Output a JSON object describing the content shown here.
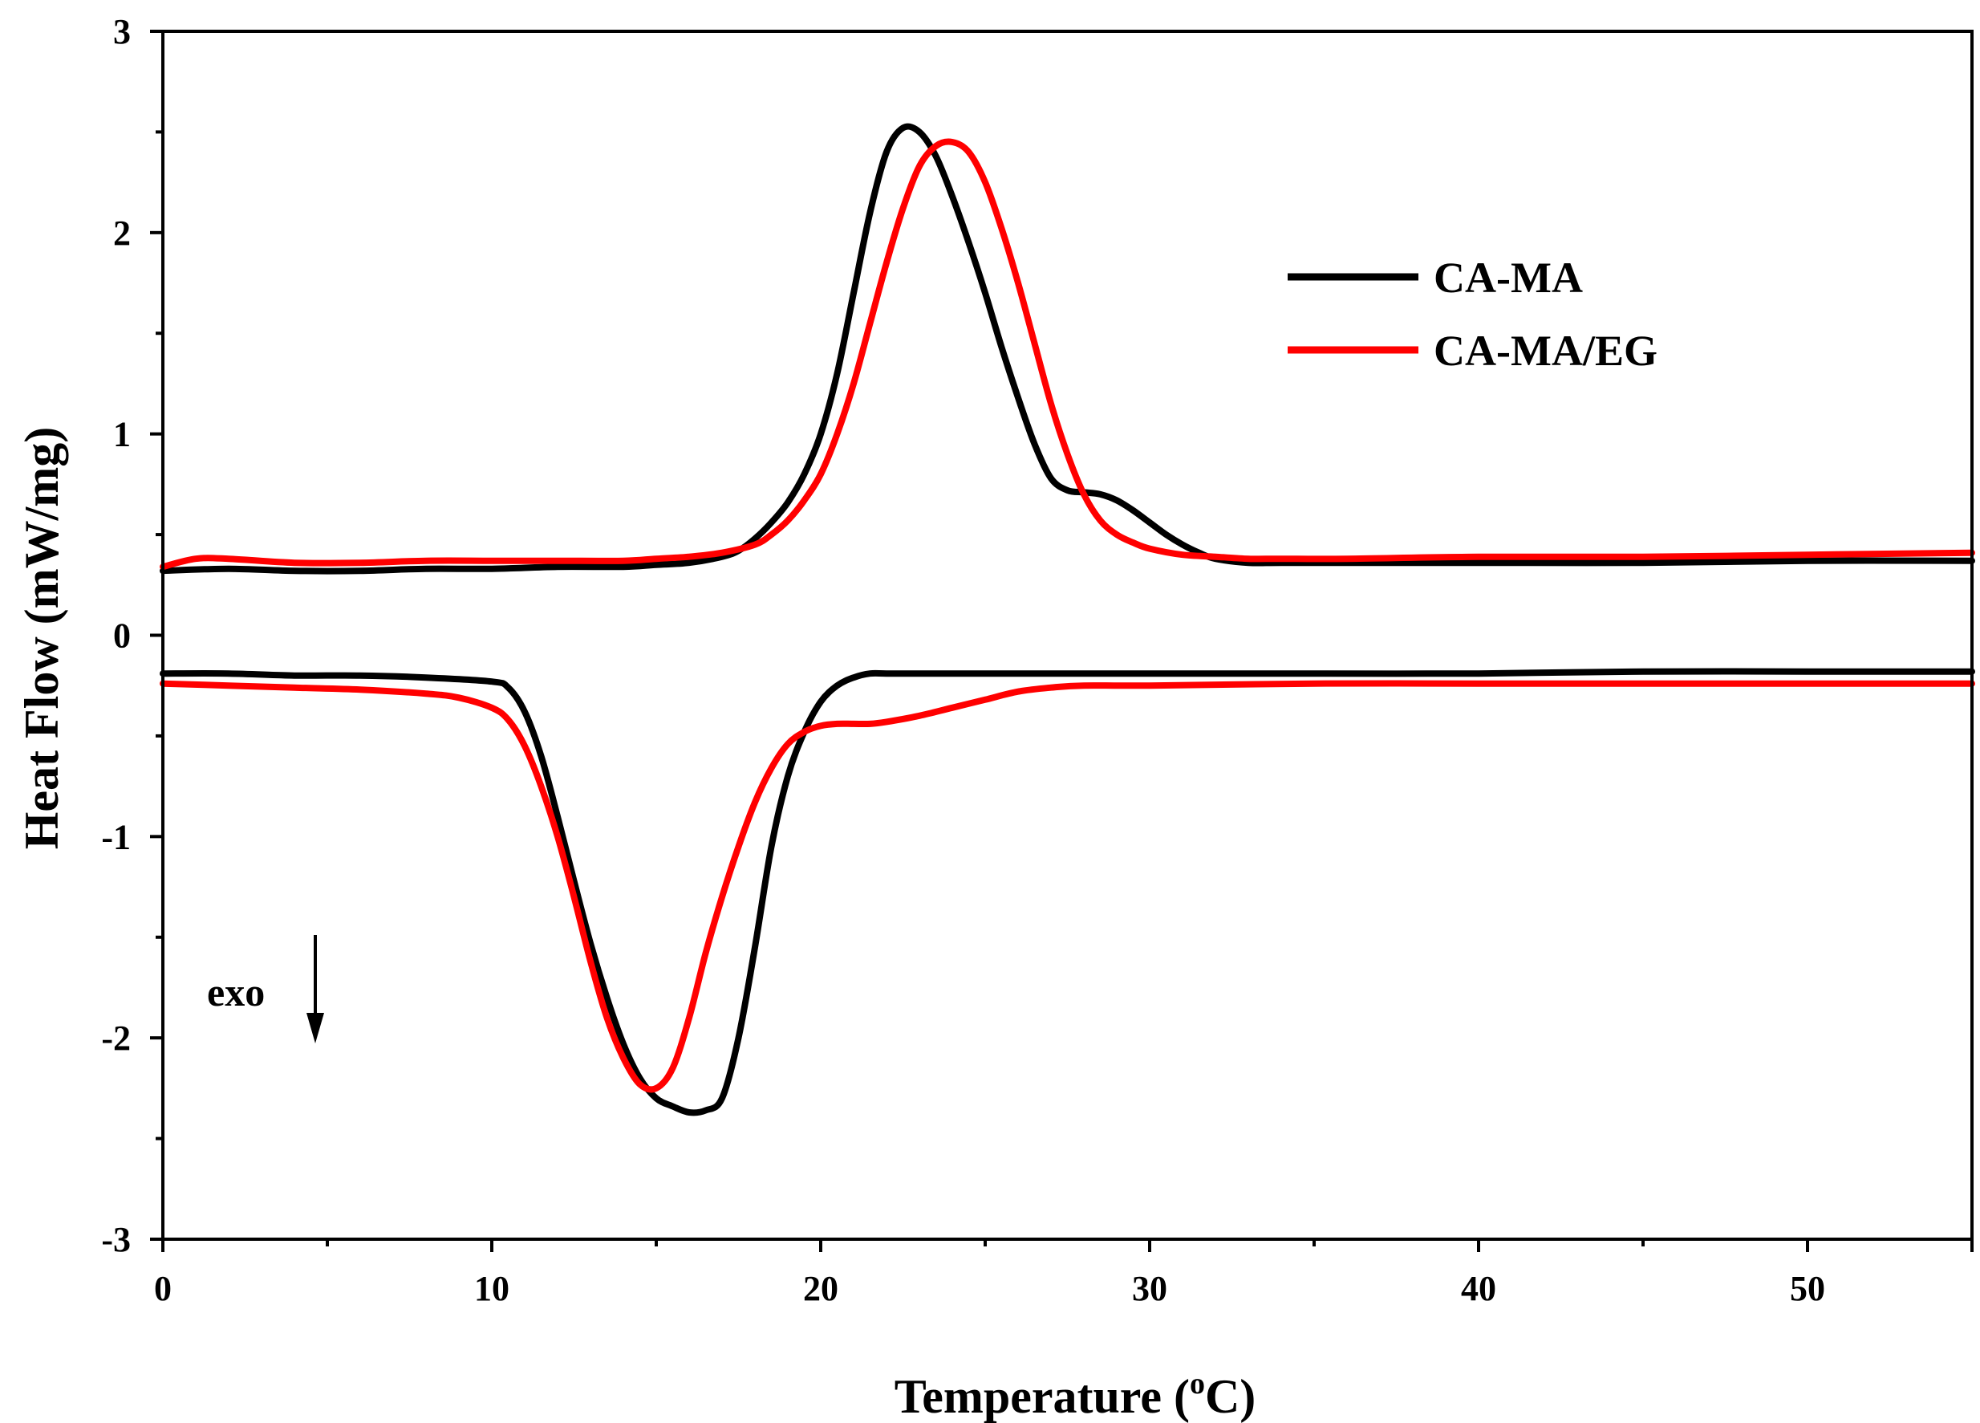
{
  "chart_data": {
    "type": "line",
    "title": "",
    "xlabel": "Temperature",
    "xlabel_unit_prefix": " (",
    "xlabel_unit_sup": "o",
    "xlabel_unit_suffix": "C)",
    "ylabel": "Heat Flow (mW/mg)",
    "xlim": [
      0,
      55
    ],
    "ylim": [
      -3,
      3
    ],
    "x_ticks": [
      0,
      10,
      20,
      30,
      40,
      50
    ],
    "y_ticks": [
      -3,
      -2,
      -1,
      0,
      1,
      2,
      3
    ],
    "grid": false,
    "legend_position": "top-right",
    "annotation": {
      "text": "exo",
      "arrow": "down"
    },
    "series": [
      {
        "name": "CA-MA",
        "color": "#000000",
        "branch": "heating",
        "x": [
          0,
          2,
          4,
          6,
          8,
          10,
          12,
          14,
          15,
          16,
          17,
          17.5,
          18,
          18.5,
          19,
          19.5,
          20,
          20.5,
          21,
          21.5,
          22,
          22.5,
          23,
          23.5,
          24,
          24.5,
          25,
          25.5,
          26,
          26.5,
          27,
          27.5,
          28,
          28.5,
          29,
          29.5,
          30,
          30.5,
          31,
          31.5,
          32,
          33,
          34,
          36,
          40,
          45,
          50,
          55
        ],
        "y": [
          0.32,
          0.33,
          0.32,
          0.32,
          0.33,
          0.33,
          0.34,
          0.34,
          0.35,
          0.36,
          0.39,
          0.42,
          0.48,
          0.56,
          0.66,
          0.8,
          1.0,
          1.3,
          1.7,
          2.1,
          2.4,
          2.52,
          2.5,
          2.38,
          2.18,
          1.95,
          1.7,
          1.43,
          1.18,
          0.95,
          0.78,
          0.72,
          0.71,
          0.7,
          0.67,
          0.62,
          0.56,
          0.5,
          0.45,
          0.41,
          0.38,
          0.36,
          0.36,
          0.36,
          0.36,
          0.36,
          0.37,
          0.37
        ]
      },
      {
        "name": "CA-MA/EG",
        "color": "#ff0000",
        "branch": "heating",
        "x": [
          0,
          1,
          2,
          4,
          6,
          8,
          10,
          12,
          14,
          15,
          16,
          17,
          18,
          18.5,
          19,
          19.5,
          20,
          20.5,
          21,
          21.5,
          22,
          22.5,
          23,
          23.5,
          24,
          24.5,
          25,
          25.5,
          26,
          26.5,
          27,
          27.5,
          28,
          28.5,
          29,
          29.5,
          30,
          31,
          32,
          33,
          34,
          36,
          40,
          45,
          50,
          55
        ],
        "y": [
          0.34,
          0.38,
          0.38,
          0.36,
          0.36,
          0.37,
          0.37,
          0.37,
          0.37,
          0.38,
          0.39,
          0.41,
          0.45,
          0.5,
          0.57,
          0.67,
          0.8,
          1.0,
          1.25,
          1.55,
          1.85,
          2.12,
          2.33,
          2.43,
          2.45,
          2.4,
          2.25,
          2.02,
          1.75,
          1.45,
          1.15,
          0.9,
          0.7,
          0.57,
          0.5,
          0.46,
          0.43,
          0.4,
          0.39,
          0.38,
          0.38,
          0.38,
          0.39,
          0.39,
          0.4,
          0.41
        ]
      },
      {
        "name": "CA-MA",
        "color": "#000000",
        "branch": "cooling",
        "x": [
          0,
          2,
          4,
          6,
          8,
          10,
          10.5,
          11,
          11.5,
          12,
          12.5,
          13,
          13.5,
          14,
          14.5,
          15,
          15.5,
          16,
          16.5,
          17,
          17.5,
          18,
          18.5,
          19,
          19.5,
          20,
          20.5,
          21,
          21.5,
          22,
          23,
          25,
          30,
          35,
          40,
          45,
          50,
          55
        ],
        "y": [
          -0.19,
          -0.19,
          -0.2,
          -0.2,
          -0.21,
          -0.23,
          -0.26,
          -0.38,
          -0.6,
          -0.9,
          -1.22,
          -1.53,
          -1.8,
          -2.03,
          -2.2,
          -2.3,
          -2.34,
          -2.37,
          -2.36,
          -2.3,
          -2.0,
          -1.55,
          -1.05,
          -0.7,
          -0.48,
          -0.33,
          -0.25,
          -0.21,
          -0.19,
          -0.19,
          -0.19,
          -0.19,
          -0.19,
          -0.19,
          -0.19,
          -0.18,
          -0.18,
          -0.18
        ]
      },
      {
        "name": "CA-MA/EG",
        "color": "#ff0000",
        "branch": "cooling",
        "x": [
          0,
          2,
          4,
          6,
          8,
          9,
          10,
          10.5,
          11,
          11.5,
          12,
          12.5,
          13,
          13.5,
          14,
          14.5,
          15,
          15.5,
          16,
          16.5,
          17,
          17.5,
          18,
          18.5,
          19,
          19.5,
          20,
          20.5,
          21,
          21.5,
          22,
          23,
          24,
          25,
          26,
          27,
          28,
          30,
          35,
          40,
          45,
          50,
          55
        ],
        "y": [
          -0.24,
          -0.25,
          -0.26,
          -0.27,
          -0.29,
          -0.31,
          -0.36,
          -0.42,
          -0.55,
          -0.75,
          -1.0,
          -1.3,
          -1.62,
          -1.9,
          -2.1,
          -2.23,
          -2.25,
          -2.15,
          -1.9,
          -1.58,
          -1.3,
          -1.05,
          -0.83,
          -0.66,
          -0.54,
          -0.48,
          -0.45,
          -0.44,
          -0.44,
          -0.44,
          -0.43,
          -0.4,
          -0.36,
          -0.32,
          -0.28,
          -0.26,
          -0.25,
          -0.25,
          -0.24,
          -0.24,
          -0.24,
          -0.24,
          -0.24
        ]
      }
    ]
  }
}
